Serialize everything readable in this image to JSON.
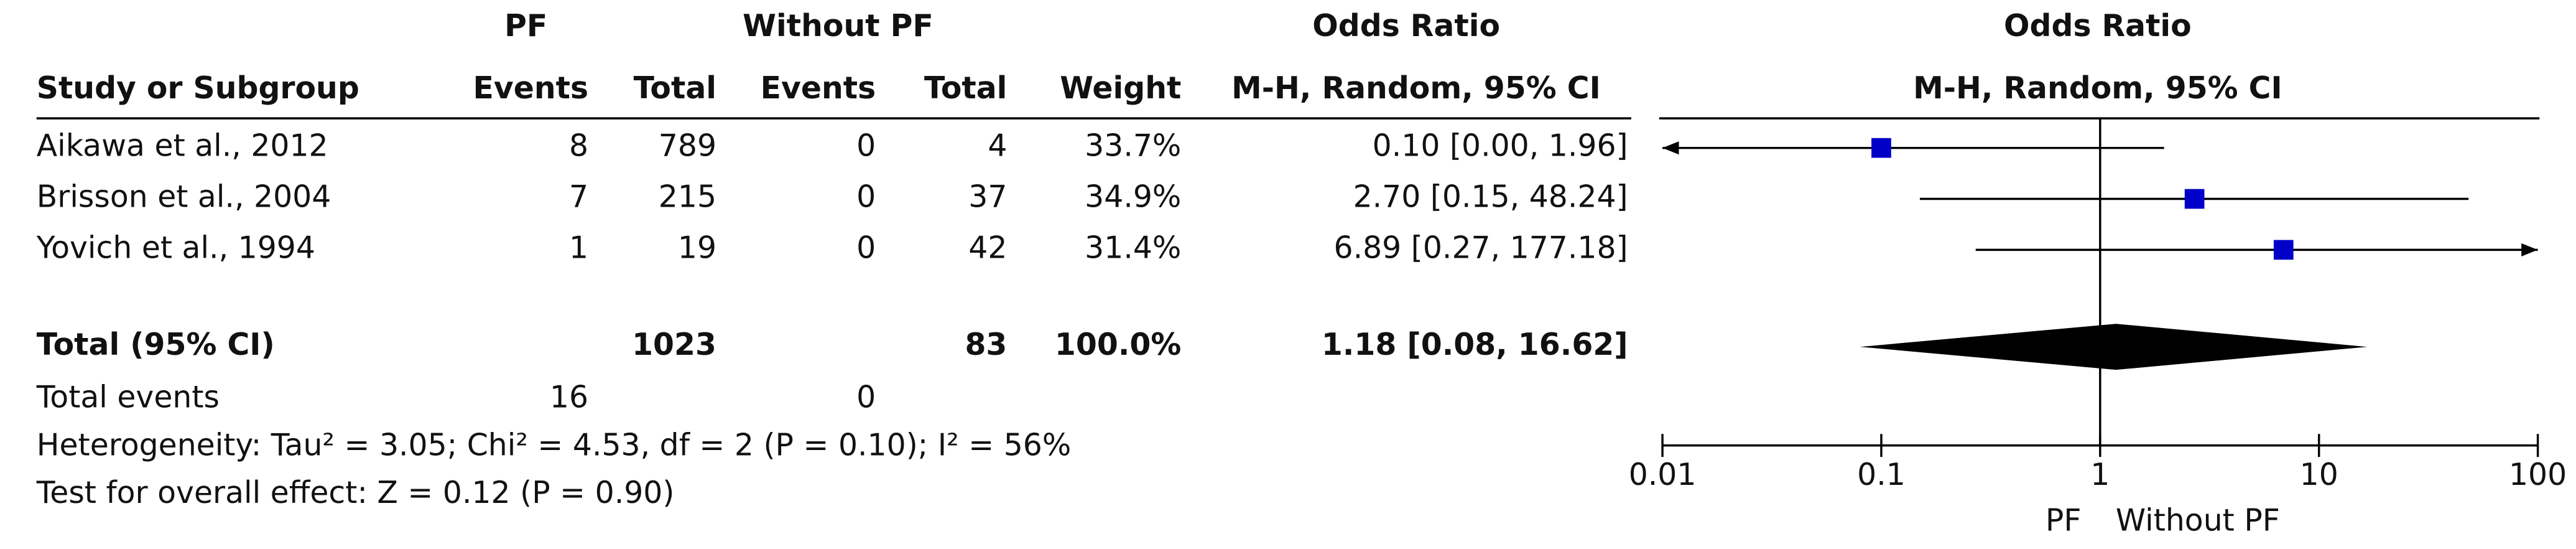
{
  "chart_data": {
    "type": "forest",
    "header": {
      "group_pf": "PF",
      "group_without": "Without PF",
      "effect": "Odds Ratio",
      "col_study": "Study or Subgroup",
      "col_events_pf": "Events",
      "col_total_pf": "Total",
      "col_events_without": "Events",
      "col_total_without": "Total",
      "col_weight": "Weight",
      "col_method": "M-H, Random, 95% CI"
    },
    "plot_title": "Odds Ratio",
    "plot_method": "M-H, Random, 95% CI",
    "studies": [
      {
        "name": "Aikawa et al., 2012",
        "pf_events": 8,
        "pf_total": 789,
        "without_events": 0,
        "without_total": 4,
        "weight": 33.7,
        "weight_label": "33.7%",
        "or": 0.1,
        "ci": [
          0.0,
          1.96
        ],
        "or_label": "0.10 [0.00, 1.96]"
      },
      {
        "name": "Brisson et al., 2004",
        "pf_events": 7,
        "pf_total": 215,
        "without_events": 0,
        "without_total": 37,
        "weight": 34.9,
        "weight_label": "34.9%",
        "or": 2.7,
        "ci": [
          0.15,
          48.24
        ],
        "or_label": "2.70 [0.15, 48.24]"
      },
      {
        "name": "Yovich et al., 1994",
        "pf_events": 1,
        "pf_total": 19,
        "without_events": 0,
        "without_total": 42,
        "weight": 31.4,
        "weight_label": "31.4%",
        "or": 6.89,
        "ci": [
          0.27,
          177.18
        ],
        "or_label": "6.89 [0.27, 177.18]"
      }
    ],
    "total": {
      "name": "Total (95% CI)",
      "pf_total": 1023,
      "without_total": 83,
      "weight": 100.0,
      "weight_label": "100.0%",
      "or": 1.18,
      "ci": [
        0.08,
        16.62
      ],
      "or_label": "1.18 [0.08, 16.62]"
    },
    "total_events": {
      "name": "Total events",
      "pf": 16,
      "without": 0
    },
    "heterogeneity": "Heterogeneity: Tau² = 3.05; Chi² = 4.53, df = 2 (P = 0.10); I² = 56%",
    "overall_effect": "Test for overall effect: Z = 0.12 (P = 0.90)",
    "xlim": [
      0.01,
      100
    ],
    "xticks": [
      0.01,
      0.1,
      1,
      10,
      100
    ],
    "log_x": true,
    "null_line": 1,
    "favours_left": "PF",
    "favours_right": "Without PF",
    "marker_color": "#0000c8"
  }
}
